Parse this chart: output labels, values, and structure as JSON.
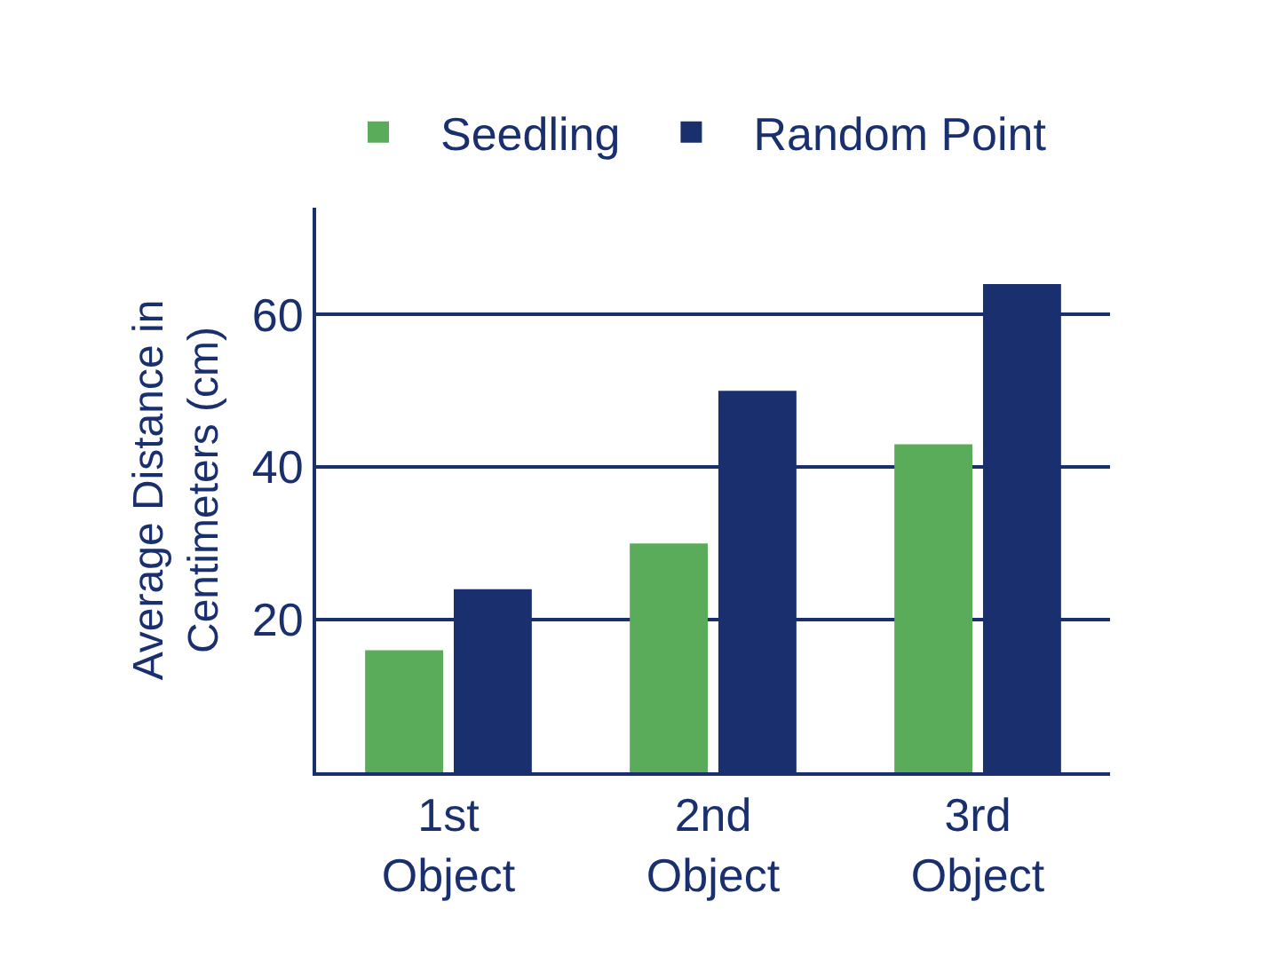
{
  "chart_data": {
    "type": "bar",
    "ylabel": "Average Distance in Centimeters (cm)",
    "categories": [
      "1st Object",
      "2nd Object",
      "3rd Object"
    ],
    "series": [
      {
        "name": "Seedling",
        "color": "#5aab5a",
        "values": [
          16,
          30,
          43
        ]
      },
      {
        "name": "Random Point",
        "color": "#1a2f6e",
        "values": [
          24,
          50,
          64
        ]
      }
    ],
    "ylim": [
      0,
      74
    ],
    "yticks": [
      20,
      40,
      60
    ],
    "grid": "y",
    "legend": "top"
  }
}
